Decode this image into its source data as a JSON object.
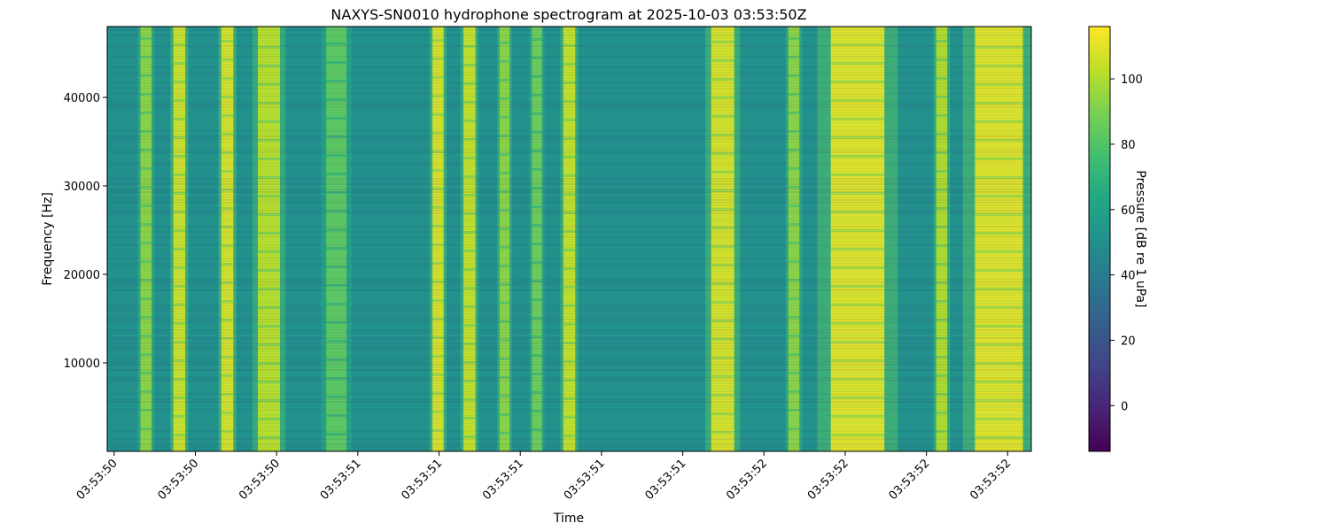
{
  "chart_data": {
    "type": "heatmap",
    "title": "NAXYS-SN0010 hydrophone spectrogram at 2025-10-03 03:53:50Z",
    "xlabel": "Time",
    "ylabel": "Frequency [Hz]",
    "colorbar_label": "Pressure [dB re 1 uPa]",
    "colormap": "viridis",
    "ylim": [
      0,
      48000
    ],
    "y_ticks": [
      10000,
      20000,
      30000,
      40000
    ],
    "x_tick_labels": [
      "03:53:50",
      "03:53:50",
      "03:53:50",
      "03:53:51",
      "03:53:51",
      "03:53:51",
      "03:53:51",
      "03:53:51",
      "03:53:52",
      "03:53:52",
      "03:53:52",
      "03:53:52"
    ],
    "clim": [
      -14,
      116
    ],
    "colorbar_ticks": [
      0,
      20,
      40,
      60,
      80,
      100
    ],
    "background_level_db": 50,
    "time_bands": [
      {
        "center": 0.042,
        "width": 0.012,
        "level_db": 95
      },
      {
        "center": 0.078,
        "width": 0.013,
        "level_db": 108
      },
      {
        "center": 0.13,
        "width": 0.013,
        "level_db": 110
      },
      {
        "center": 0.175,
        "width": 0.024,
        "level_db": 104
      },
      {
        "center": 0.248,
        "width": 0.022,
        "level_db": 84
      },
      {
        "center": 0.358,
        "width": 0.012,
        "level_db": 110
      },
      {
        "center": 0.392,
        "width": 0.013,
        "level_db": 106
      },
      {
        "center": 0.43,
        "width": 0.011,
        "level_db": 95
      },
      {
        "center": 0.465,
        "width": 0.011,
        "level_db": 88
      },
      {
        "center": 0.5,
        "width": 0.013,
        "level_db": 106
      },
      {
        "center": 0.666,
        "width": 0.025,
        "level_db": 110
      },
      {
        "center": 0.743,
        "width": 0.012,
        "level_db": 95
      },
      {
        "center": 0.812,
        "width": 0.058,
        "level_db": 112
      },
      {
        "center": 0.903,
        "width": 0.012,
        "level_db": 102
      },
      {
        "center": 0.965,
        "width": 0.052,
        "level_db": 112
      }
    ]
  }
}
